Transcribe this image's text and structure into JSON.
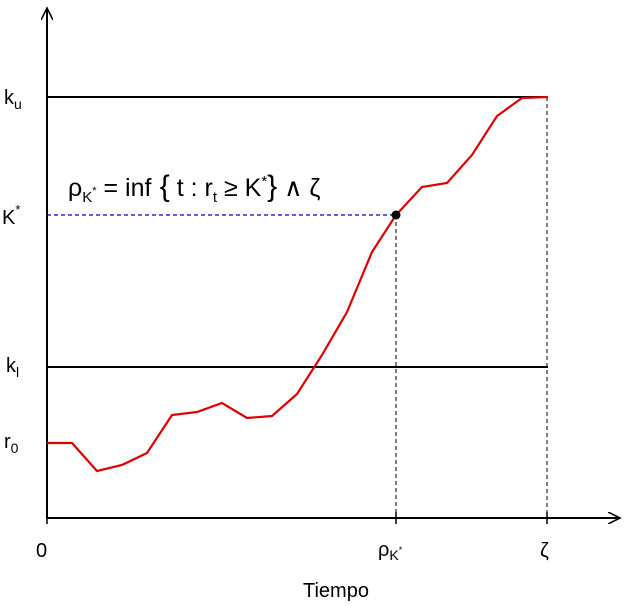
{
  "y_labels": {
    "ku": {
      "base": "k",
      "sub": "u"
    },
    "kstar": {
      "base": "K",
      "sup": "*"
    },
    "kl": {
      "base": "k",
      "sub": "l"
    },
    "r0": {
      "base": "r",
      "sub": "0"
    }
  },
  "formula": {
    "rho": "ρ",
    "rho_sub": "K",
    "rho_sub_sup": "*",
    "eq": " = inf",
    "open": " {",
    "t": " t : ",
    "r": "r",
    "r_sub": "t",
    "geq": " ≥ K",
    "k_sup": "*",
    "close": "}",
    "wedge": " ∧ ",
    "zeta": "ζ"
  },
  "x_labels": {
    "origin": "0",
    "rho": "ρ",
    "rho_sub": "K",
    "rho_sub_sup": "*",
    "zeta": "ζ"
  },
  "x_axis_title": "Tiempo"
}
